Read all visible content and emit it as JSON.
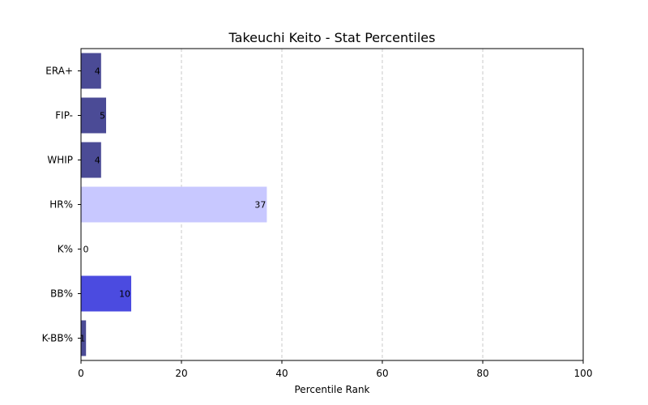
{
  "chart_data": {
    "type": "bar",
    "orientation": "horizontal",
    "title": "Takeuchi Keito - Stat Percentiles",
    "xlabel": "Percentile Rank",
    "ylabel": "",
    "xlim": [
      0,
      100
    ],
    "xticks": [
      0,
      20,
      40,
      60,
      80,
      100
    ],
    "grid": "x-dashed",
    "categories": [
      "ERA+",
      "FIP-",
      "WHIP",
      "HR%",
      "K%",
      "BB%",
      "K-BB%"
    ],
    "values": [
      4,
      5,
      4,
      37,
      0,
      10,
      1
    ],
    "colors": [
      "#4b4b96",
      "#4b4b96",
      "#4b4b96",
      "#c8c8ff",
      "#4b4b96",
      "#4b4be0",
      "#4b4b96"
    ]
  }
}
